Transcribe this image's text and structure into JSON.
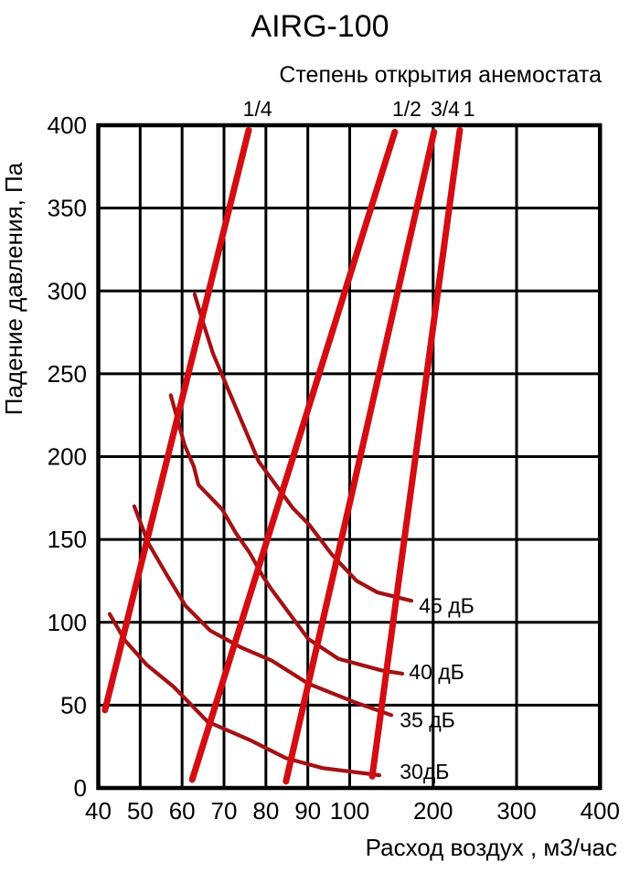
{
  "chart_data": {
    "type": "line",
    "title": "AIRG-100",
    "subtitle": "Степень открытия анемостата",
    "xlabel": "Расход воздух , м3/час",
    "ylabel": "Падение давления, Па",
    "xlim": [
      40,
      400
    ],
    "ylim": [
      0,
      400
    ],
    "x_ticks": [
      40,
      50,
      60,
      70,
      80,
      90,
      100,
      200,
      300,
      400
    ],
    "y_ticks": [
      0,
      50,
      100,
      150,
      200,
      250,
      300,
      350,
      400
    ],
    "x_scale_note": "piecewise linear: equal steps of 10 from 40 to 100, equal steps of 100 from 100 to 400",
    "grid": true,
    "legend_position": "inline-labels",
    "opening_series": [
      {
        "name": "1/4",
        "label_x": 78,
        "points": [
          [
            41.6,
            47
          ],
          [
            75.9,
            397
          ]
        ]
      },
      {
        "name": "1/2",
        "label_x": 168.5,
        "points": [
          [
            62.4,
            5
          ],
          [
            100,
            309
          ],
          [
            154,
            396
          ]
        ]
      },
      {
        "name": "3/4",
        "label_x": 214.5,
        "points": [
          [
            84.8,
            4
          ],
          [
            100,
            172
          ],
          [
            201,
            396
          ]
        ]
      },
      {
        "name": "1",
        "label_x": 243,
        "points": [
          [
            127,
            7
          ],
          [
            232,
            397
          ]
        ]
      }
    ],
    "noise_series": [
      {
        "name": "45 дБ",
        "label_at": [
          183,
          110
        ],
        "points": [
          [
            63,
            298
          ],
          [
            65,
            281
          ],
          [
            67.4,
            262
          ],
          [
            71.1,
            240
          ],
          [
            78.3,
            197
          ],
          [
            86.4,
            169
          ],
          [
            90.3,
            159
          ],
          [
            95.7,
            141
          ],
          [
            108.2,
            125
          ],
          [
            133.4,
            118
          ],
          [
            174,
            113
          ]
        ]
      },
      {
        "name": "40 дБ",
        "label_at": [
          171,
          70
        ],
        "points": [
          [
            57.3,
            237
          ],
          [
            60.6,
            207
          ],
          [
            62.8,
            194
          ],
          [
            63.9,
            183
          ],
          [
            69.6,
            168
          ],
          [
            72.8,
            154
          ],
          [
            76.1,
            142
          ],
          [
            79.2,
            128
          ],
          [
            81.3,
            120
          ],
          [
            90.1,
            90
          ],
          [
            97.3,
            78
          ],
          [
            137.8,
            71
          ],
          [
            163,
            69
          ]
        ]
      },
      {
        "name": "35 дБ",
        "label_at": [
          160,
          41
        ],
        "points": [
          [
            48.6,
            170
          ],
          [
            51.9,
            148
          ],
          [
            56.5,
            128
          ],
          [
            60.8,
            110
          ],
          [
            66.7,
            95
          ],
          [
            73.9,
            85
          ],
          [
            81.3,
            77
          ],
          [
            90.1,
            63
          ],
          [
            104.9,
            52
          ],
          [
            149.9,
            44
          ]
        ]
      },
      {
        "name": "30дБ",
        "label_at": [
          160,
          10
        ],
        "points": [
          [
            42.7,
            105
          ],
          [
            46.4,
            89
          ],
          [
            51.5,
            74.5
          ],
          [
            58,
            61
          ],
          [
            66.1,
            40
          ],
          [
            76.1,
            29
          ],
          [
            84.8,
            18
          ],
          [
            93.6,
            12
          ],
          [
            126.9,
            8.3
          ],
          [
            135.6,
            7.7
          ]
        ]
      }
    ],
    "colors": {
      "opening_line": "#d40d12",
      "noise_curve": "#a41114",
      "grid": "#000000",
      "frame": "#000000",
      "text": "#000000",
      "background": "#ffffff"
    }
  }
}
